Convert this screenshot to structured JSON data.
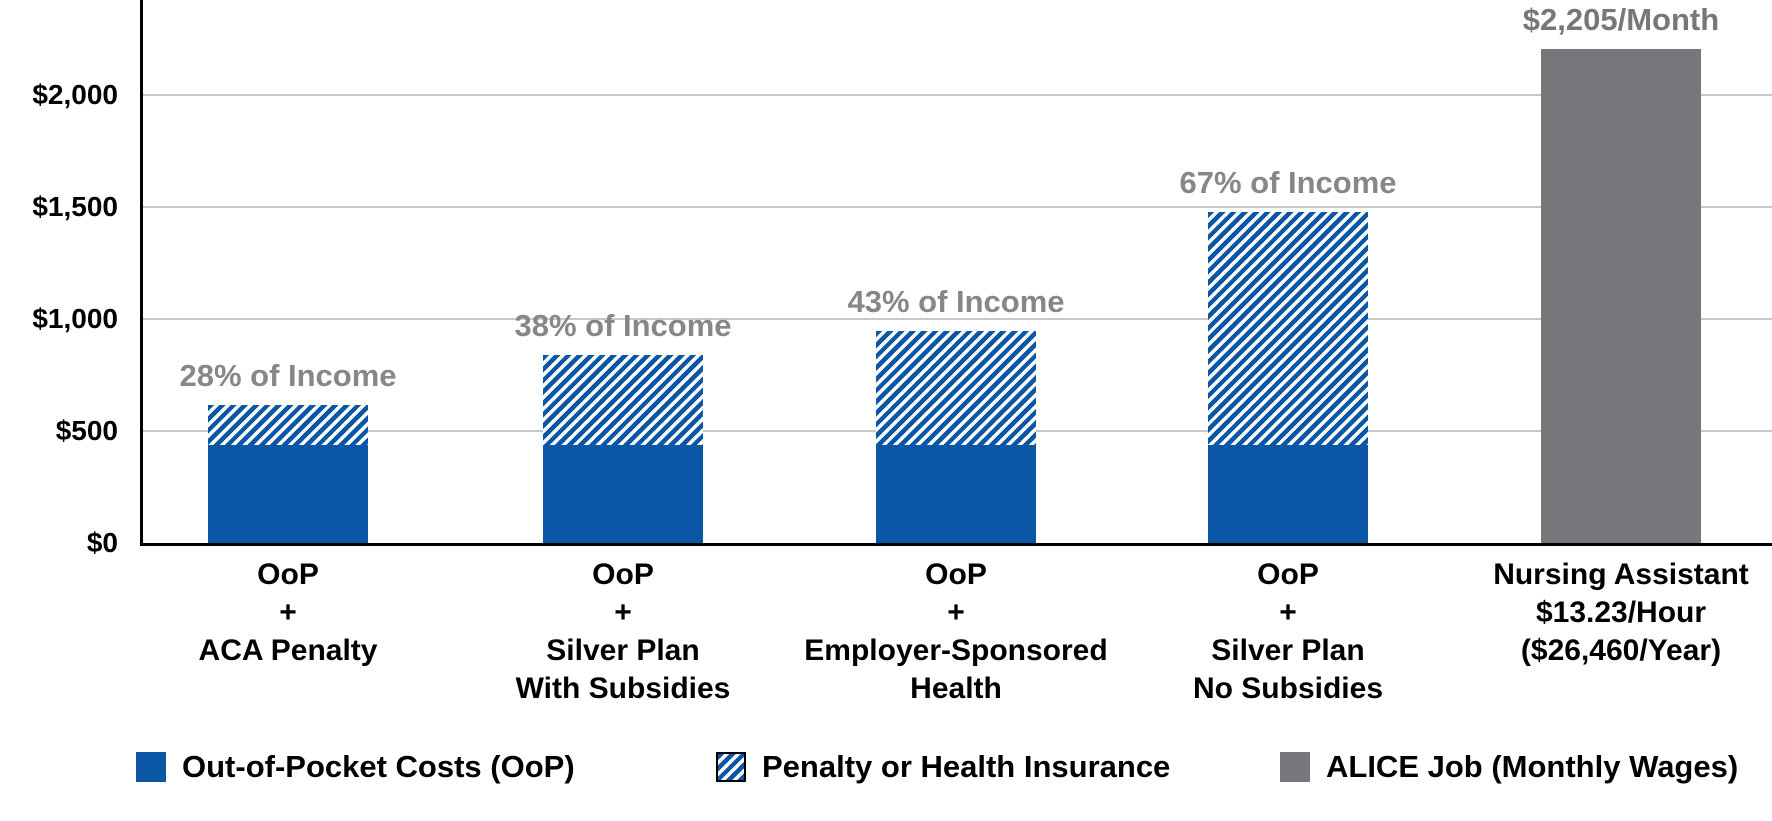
{
  "chart_data": {
    "type": "bar",
    "stacked": true,
    "grid": true,
    "legend_position": "bottom",
    "categories": [
      [
        "OoP",
        "+",
        "ACA Penalty"
      ],
      [
        "OoP",
        "+",
        "Silver Plan",
        "With Subsidies"
      ],
      [
        "OoP",
        "+",
        "Employer-Sponsored",
        "Health"
      ],
      [
        "OoP",
        "+",
        "Silver Plan",
        "No Subsidies"
      ],
      [
        "Nursing Assistant",
        "$13.23/Hour",
        "($26,460/Year)"
      ]
    ],
    "series": [
      {
        "name": "Out-of-Pocket Costs (OoP)",
        "style": "solid-blue",
        "color": "#0B57A5",
        "values": [
          437,
          437,
          437,
          437,
          0
        ]
      },
      {
        "name": "Penalty or Health Insurance",
        "style": "hatched-blue",
        "color": "#0B57A5",
        "values": [
          180,
          401,
          511,
          1040,
          0
        ]
      },
      {
        "name": "ALICE Job (Monthly Wages)",
        "style": "solid-gray",
        "color": "#77777B",
        "values": [
          0,
          0,
          0,
          0,
          2205
        ]
      }
    ],
    "bar_totals": [
      617,
      838,
      948,
      1477,
      2205
    ],
    "annotations": [
      {
        "text": "28% of Income",
        "color": "#87878B"
      },
      {
        "text": "38% of Income",
        "color": "#87878B"
      },
      {
        "text": "43% of Income",
        "color": "#87878B"
      },
      {
        "text": "67% of Income",
        "color": "#87878B"
      },
      {
        "text": "$2,205/Month",
        "color": "#77777B"
      }
    ],
    "y_axis": {
      "ticks": [
        0,
        500,
        1000,
        1500,
        2000
      ],
      "tick_labels": [
        "$0",
        "$500",
        "$1,000",
        "$1,500",
        "$2,000"
      ],
      "range": [
        0,
        2425
      ]
    }
  },
  "colors": {
    "bar_blue": "#0B57A5",
    "bar_gray": "#77777B",
    "gridline": "#C8C8C8",
    "axis": "#000000"
  }
}
